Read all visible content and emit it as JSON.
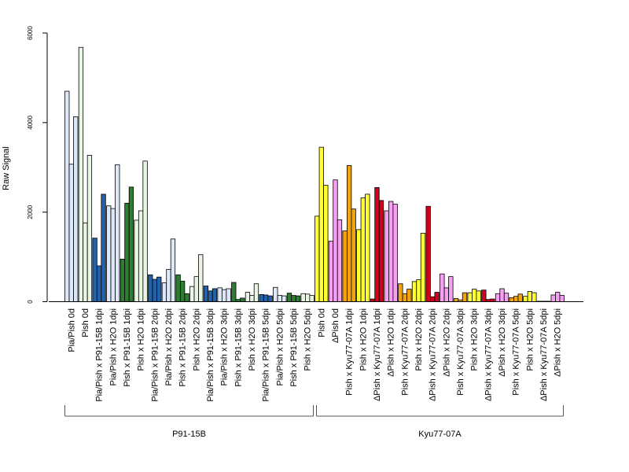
{
  "chart_data": {
    "type": "bar",
    "title": "",
    "xlabel": "",
    "ylabel": "Raw Signal",
    "ylim": [
      0,
      6000
    ],
    "yticks": [
      0,
      2000,
      4000,
      6000
    ],
    "grid": false,
    "legend": "none",
    "categories": [
      "Pia/Pish 0d",
      "Pish 0d",
      "Pia/Pish x P91-15B 1dpi",
      "Pia/Pish x H2O 1dpi",
      "Pish x P91-15B 1dpi",
      "Pish x H2O 1dpi",
      "Pia/Pish x P91-15B 2dpi",
      "Pia/Pish x H2O 2dpi",
      "Pish x P91-15B 2dpi",
      "Pish x H2O 2dpi",
      "Pia/Pish x P91-15B 3dpi",
      "Pia/Pish x H2O 3dpi",
      "Pish x P91-15B 3dpi",
      "Pish x H2O 3dpi",
      "Pia/Pish x P91-15B 5dpi",
      "Pia/Pish x H2O 5dpi",
      "Pish x P91-15B 5dpi",
      "Pish x H2O 5dpi",
      "Pish 0d",
      "ΔPish 0d",
      "Pish x Kyu77-07A 1dpi",
      "Pish x H2O 1dpi",
      "ΔPish x Kyu77-07A 1dpi",
      "ΔPish x H2O 1dpi",
      "Pish x Kyu77-07A 2dpi",
      "Pish x H2O 2dpi",
      "ΔPish x Kyu77-07A 2dpi",
      "ΔPish x H2O 2dpi",
      "Pish x Kyu77-07A 3dpi",
      "Pish x H2O 3dpi",
      "ΔPish x Kyu77-07A 3dpi",
      "ΔPish x H2O 3dpi",
      "Pish x Kyu77-07A 5dpi",
      "Pish x H2O 5dpi",
      "ΔPish x Kyu77-07A 5dpi",
      "ΔPish x H2O 5dpi"
    ],
    "values": [
      [
        4700,
        3070,
        4130
      ],
      [
        5680,
        1760,
        3270
      ],
      [
        1420,
        800,
        2400
      ],
      [
        2140,
        2080,
        3060
      ],
      [
        950,
        2200,
        2560
      ],
      [
        1820,
        2030,
        3140
      ],
      [
        600,
        500,
        550
      ],
      [
        420,
        720,
        1400
      ],
      [
        600,
        460,
        180
      ],
      [
        340,
        560,
        1050
      ],
      [
        350,
        240,
        290
      ],
      [
        310,
        270,
        290
      ],
      [
        430,
        50,
        80
      ],
      [
        210,
        140,
        400
      ],
      [
        160,
        150,
        130
      ],
      [
        320,
        140,
        130
      ],
      [
        190,
        140,
        130
      ],
      [
        180,
        170,
        140
      ],
      [
        1910,
        3450,
        2600
      ],
      [
        1350,
        2720,
        1830
      ],
      [
        1580,
        3040,
        2070
      ],
      [
        1610,
        2320,
        2400
      ],
      [
        60,
        2550,
        2260
      ],
      [
        2030,
        2240,
        2180
      ],
      [
        400,
        180,
        280
      ],
      [
        450,
        490,
        1530
      ],
      [
        2130,
        110,
        210
      ],
      [
        620,
        310,
        560
      ],
      [
        70,
        40,
        200
      ],
      [
        200,
        280,
        240
      ],
      [
        260,
        50,
        60
      ],
      [
        180,
        290,
        190
      ],
      [
        90,
        120,
        170
      ],
      [
        120,
        230,
        200
      ],
      [
        10,
        10,
        10
      ],
      [
        150,
        210,
        140
      ]
    ],
    "bar_colors": [
      "#dce8f8",
      "#eaf6e4",
      "#2361a8",
      "#dce8f8",
      "#2f7d32",
      "#eaf6e4",
      "#2361a8",
      "#dce8f8",
      "#2f7d32",
      "#eaf6e4",
      "#2361a8",
      "#dce8f8",
      "#2f7d32",
      "#eaf6e4",
      "#2361a8",
      "#dce8f8",
      "#2f7d32",
      "#eaf6e4",
      "#ffff33",
      "#f5a0f0",
      "#f2a310",
      "#ffff33",
      "#d1001c",
      "#f5a0f0",
      "#f2a310",
      "#ffff33",
      "#d1001c",
      "#f5a0f0",
      "#f2a310",
      "#ffff33",
      "#d1001c",
      "#f5a0f0",
      "#f2a310",
      "#ffff33",
      "#d1001c",
      "#f5a0f0"
    ],
    "groups": [
      {
        "label": "P91-15B",
        "start": 0,
        "end": 17
      },
      {
        "label": "Kyu77-07A",
        "start": 18,
        "end": 35
      }
    ]
  }
}
